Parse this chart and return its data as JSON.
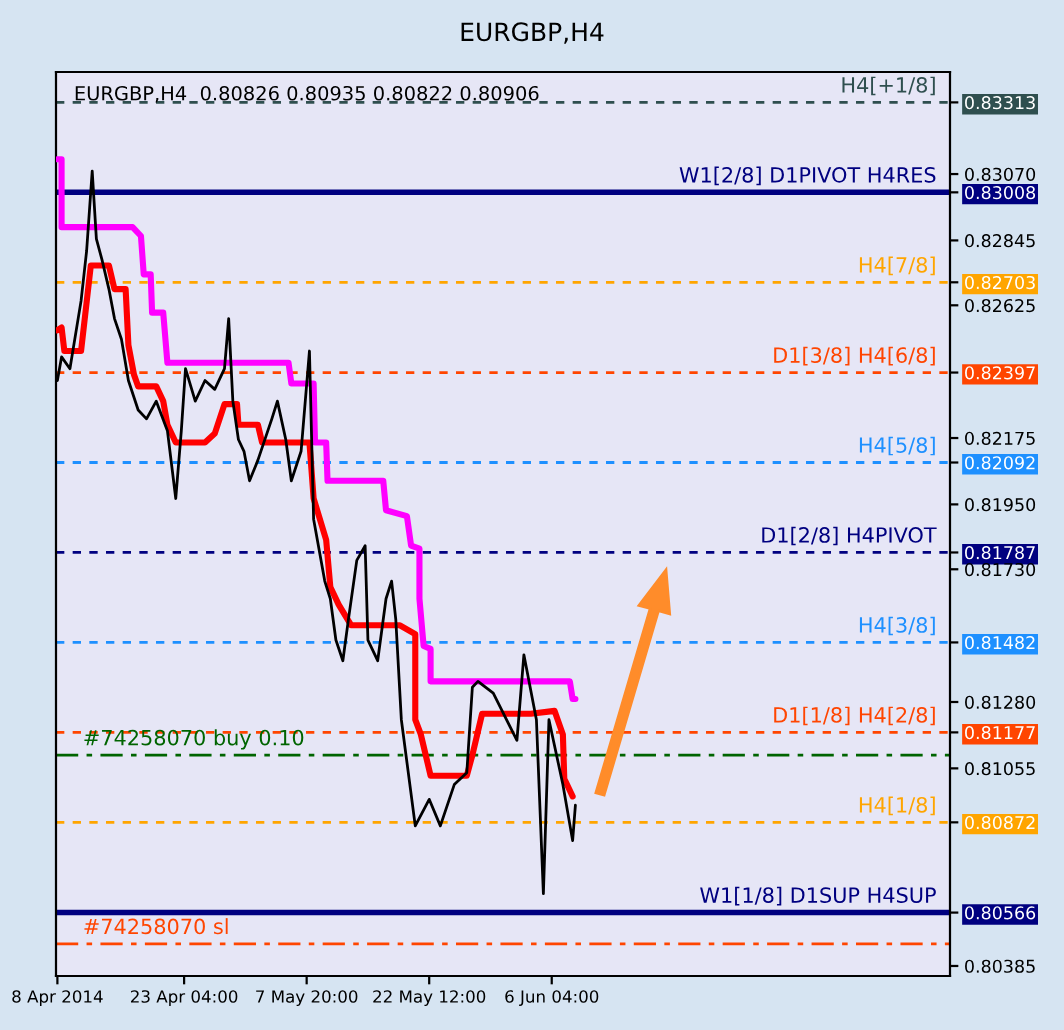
{
  "chart_data": {
    "type": "line",
    "title": "EURGBP,H4",
    "subtitle": "EURGBP,H4  0.80826 0.80935 0.80822 0.80906",
    "xlim": [
      "2014-04-07T20:00",
      "2014-07-23T20:00"
    ],
    "ylim": [
      0.80351,
      0.83416
    ],
    "xticks": [
      {
        "value": "2014-04-08T00:00",
        "label": "8 Apr 2014"
      },
      {
        "value": "2014-04-23T04:00",
        "label": "23 Apr 04:00"
      },
      {
        "value": "2014-05-07T20:00",
        "label": "7 May 20:00"
      },
      {
        "value": "2014-05-22T12:00",
        "label": "22 May 12:00"
      },
      {
        "value": "2014-06-06T04:00",
        "label": "6 Jun 04:00"
      }
    ],
    "yticks": [
      {
        "value": 0.83313,
        "label": "0.83313"
      },
      {
        "value": 0.8307,
        "label": "0.83070"
      },
      {
        "value": 0.83008,
        "label": "0.83008"
      },
      {
        "value": 0.82845,
        "label": "0.82845"
      },
      {
        "value": 0.82703,
        "label": "0.82703"
      },
      {
        "value": 0.82625,
        "label": "0.82625"
      },
      {
        "value": 0.82397,
        "label": "0.82397"
      },
      {
        "value": 0.82175,
        "label": "0.82175"
      },
      {
        "value": 0.82092,
        "label": "0.82092"
      },
      {
        "value": 0.8195,
        "label": "0.81950"
      },
      {
        "value": 0.81787,
        "label": "0.81787"
      },
      {
        "value": 0.8173,
        "label": "0.81730"
      },
      {
        "value": 0.81482,
        "label": "0.81482"
      },
      {
        "value": 0.8128,
        "label": "0.81280"
      },
      {
        "value": 0.81177,
        "label": "0.81177"
      },
      {
        "value": 0.81055,
        "label": "0.81055"
      },
      {
        "value": 0.80872,
        "label": "0.80872"
      },
      {
        "value": 0.80566,
        "label": "0.80566"
      },
      {
        "value": 0.80385,
        "label": "0.80385"
      }
    ],
    "series": [
      {
        "color": "#ff00ff",
        "x": [
          "2014-04-08T00:00",
          "2014-04-08T12:00",
          "2014-04-08T12:00",
          "2014-04-17T00:00",
          "2014-04-18T00:00",
          "2014-04-18T08:00",
          "2014-04-19T04:00",
          "2014-04-19T08:00",
          "2014-04-20T16:00",
          "2014-04-21T04:00",
          "2014-05-05T16:00",
          "2014-05-06T00:00",
          "2014-05-08T16:00",
          "2014-05-08T20:00",
          "2014-05-10T04:00",
          "2014-05-10T08:00",
          "2014-05-17T00:00",
          "2014-05-17T08:00",
          "2014-05-19T20:00",
          "2014-05-20T08:00",
          "2014-05-21T08:00",
          "2014-05-21T08:00",
          "2014-05-21T20:00",
          "2014-05-22T16:00",
          "2014-05-22T16:00",
          "2014-06-08T08:00",
          "2014-06-08T16:00",
          "2014-06-09T00:00"
        ],
        "values": [
          0.8312,
          0.8312,
          0.8289,
          0.8289,
          0.8286,
          0.8273,
          0.8273,
          0.826,
          0.826,
          0.8243,
          0.8243,
          0.8236,
          0.8236,
          0.8216,
          0.8216,
          0.8203,
          0.8203,
          0.8193,
          0.8191,
          0.8181,
          0.818,
          0.8163,
          0.8147,
          0.8146,
          0.8135,
          0.8135,
          0.8129,
          0.8129
        ]
      },
      {
        "color": "#ff0000",
        "x": [
          "2014-04-08T00:00",
          "2014-04-08T12:00",
          "2014-04-08T20:00",
          "2014-04-10T20:00",
          "2014-04-12T00:00",
          "2014-04-14T04:00",
          "2014-04-14T20:00",
          "2014-04-16T04:00",
          "2014-04-16T12:00",
          "2014-04-17T04:00",
          "2014-04-17T16:00",
          "2014-04-19T20:00",
          "2014-04-20T16:00",
          "2014-04-21T04:00",
          "2014-04-22T04:00",
          "2014-04-25T16:00",
          "2014-04-26T20:00",
          "2014-04-28T00:00",
          "2014-04-29T12:00",
          "2014-04-29T16:00",
          "2014-05-02T00:00",
          "2014-05-02T12:00",
          "2014-05-08T04:00",
          "2014-05-08T16:00",
          "2014-05-10T04:00",
          "2014-05-10T16:00",
          "2014-05-11T16:00",
          "2014-05-13T04:00",
          "2014-05-19T00:00",
          "2014-05-20T20:00",
          "2014-05-20T20:00",
          "2014-05-21T12:00",
          "2014-05-22T16:00",
          "2014-05-27T00:00",
          "2014-05-27T16:00",
          "2014-05-28T20:00",
          "2014-06-03T16:00",
          "2014-06-06T12:00",
          "2014-06-07T12:00",
          "2014-06-07T16:00",
          "2014-06-08T16:00"
        ],
        "values": [
          0.8254,
          0.8255,
          0.8247,
          0.8247,
          0.8276,
          0.8276,
          0.8268,
          0.8268,
          0.8249,
          0.8239,
          0.8235,
          0.8235,
          0.823,
          0.8222,
          0.8216,
          0.8216,
          0.8219,
          0.8229,
          0.8229,
          0.8222,
          0.8222,
          0.8216,
          0.8216,
          0.8197,
          0.8183,
          0.8167,
          0.8161,
          0.8154,
          0.8154,
          0.8151,
          0.8122,
          0.8117,
          0.8103,
          0.8103,
          0.811,
          0.8124,
          0.8124,
          0.8125,
          0.8117,
          0.8102,
          0.8096
        ]
      },
      {
        "color": "#000000",
        "x": [
          "2014-04-08T00:00",
          "2014-04-08T12:00",
          "2014-04-09T12:00",
          "2014-04-10T20:00",
          "2014-04-11T12:00",
          "2014-04-12T04:00",
          "2014-04-12T16:00",
          "2014-04-13T08:00",
          "2014-04-14T04:00",
          "2014-04-14T20:00",
          "2014-04-15T16:00",
          "2014-04-16T12:00",
          "2014-04-17T16:00",
          "2014-04-18T16:00",
          "2014-04-19T20:00",
          "2014-04-21T04:00",
          "2014-04-22T04:00",
          "2014-04-22T20:00",
          "2014-04-23T08:00",
          "2014-04-24T12:00",
          "2014-04-25T16:00",
          "2014-04-26T20:00",
          "2014-04-28T00:00",
          "2014-04-28T12:00",
          "2014-04-29T00:00",
          "2014-04-29T16:00",
          "2014-04-30T08:00",
          "2014-05-01T00:00",
          "2014-05-02T00:00",
          "2014-05-03T16:00",
          "2014-05-04T08:00",
          "2014-05-05T08:00",
          "2014-05-06T00:00",
          "2014-05-07T04:00",
          "2014-05-08T04:00",
          "2014-05-08T16:00",
          "2014-05-10T00:00",
          "2014-05-10T16:00",
          "2014-05-11T08:00",
          "2014-05-12T04:00",
          "2014-05-12T20:00",
          "2014-05-13T20:00",
          "2014-05-14T20:00",
          "2014-05-15T04:00",
          "2014-05-16T08:00",
          "2014-05-17T08:00",
          "2014-05-18T00:00",
          "2014-05-18T12:00",
          "2014-05-19T04:00",
          "2014-05-20T20:00",
          "2014-05-22T12:00",
          "2014-05-23T20:00",
          "2014-05-25T12:00",
          "2014-05-27T00:00",
          "2014-05-27T16:00",
          "2014-05-28T08:00",
          "2014-05-30T04:00",
          "2014-06-02T00:00",
          "2014-06-02T20:00",
          "2014-06-04T08:00",
          "2014-06-05T04:00",
          "2014-06-05T20:00",
          "2014-06-07T12:00",
          "2014-06-08T16:00",
          "2014-06-09T00:00"
        ],
        "values": [
          0.8237,
          0.8245,
          0.8241,
          0.8264,
          0.8281,
          0.8308,
          0.8285,
          0.8278,
          0.8268,
          0.8258,
          0.8251,
          0.8237,
          0.8227,
          0.8224,
          0.823,
          0.822,
          0.8197,
          0.822,
          0.8241,
          0.823,
          0.8237,
          0.8234,
          0.8241,
          0.8258,
          0.823,
          0.8217,
          0.8213,
          0.8203,
          0.821,
          0.8224,
          0.823,
          0.8217,
          0.8203,
          0.8213,
          0.8247,
          0.819,
          0.8169,
          0.8163,
          0.8149,
          0.8142,
          0.8156,
          0.8176,
          0.8181,
          0.8149,
          0.8142,
          0.8163,
          0.8169,
          0.8156,
          0.8122,
          0.8086,
          0.8095,
          0.8086,
          0.81,
          0.8104,
          0.8133,
          0.8135,
          0.8131,
          0.8115,
          0.8144,
          0.8122,
          0.8063,
          0.8122,
          0.81,
          0.8081,
          0.8093
        ]
      }
    ],
    "ref_lines": [
      {
        "axis": "y",
        "value": 0.83313,
        "label": "H4[+1/8]",
        "color": "#2f4f4f",
        "line_style": "dashed"
      },
      {
        "axis": "y",
        "value": 0.83008,
        "label": "W1[2/8] D1PIVOT H4RES",
        "color": "#000080",
        "line_style": "solid"
      },
      {
        "axis": "y",
        "value": 0.82703,
        "label": "H4[7/8]",
        "color": "#ffa500",
        "line_style": "dashed"
      },
      {
        "axis": "y",
        "value": 0.82397,
        "label": "D1[3/8] H4[6/8]",
        "color": "#ff4500",
        "line_style": "dashed"
      },
      {
        "axis": "y",
        "value": 0.82092,
        "label": "H4[5/8]",
        "color": "#1e90ff",
        "line_style": "dashed"
      },
      {
        "axis": "y",
        "value": 0.81787,
        "label": "D1[2/8] H4PIVOT",
        "color": "#000080",
        "line_style": "dashed"
      },
      {
        "axis": "y",
        "value": 0.81482,
        "label": "H4[3/8]",
        "color": "#1e90ff",
        "line_style": "dashed"
      },
      {
        "axis": "y",
        "value": 0.81177,
        "label": "D1[1/8] H4[2/8]",
        "color": "#ff4500",
        "line_style": "dashed"
      },
      {
        "axis": "y",
        "value": 0.811,
        "label": "#74258070 buy 0.10",
        "color": "#006400",
        "line_style": "dashdot"
      },
      {
        "axis": "y",
        "value": 0.80872,
        "label": "H4[1/8]",
        "color": "#ffa500",
        "line_style": "dashed"
      },
      {
        "axis": "y",
        "value": 0.80566,
        "label": "W1[1/8] D1SUP H4SUP",
        "color": "#000080",
        "line_style": "solid"
      },
      {
        "axis": "y",
        "value": 0.8046,
        "label": "#74258070 sl",
        "color": "#ff4500",
        "line_style": "dashdot"
      }
    ]
  }
}
